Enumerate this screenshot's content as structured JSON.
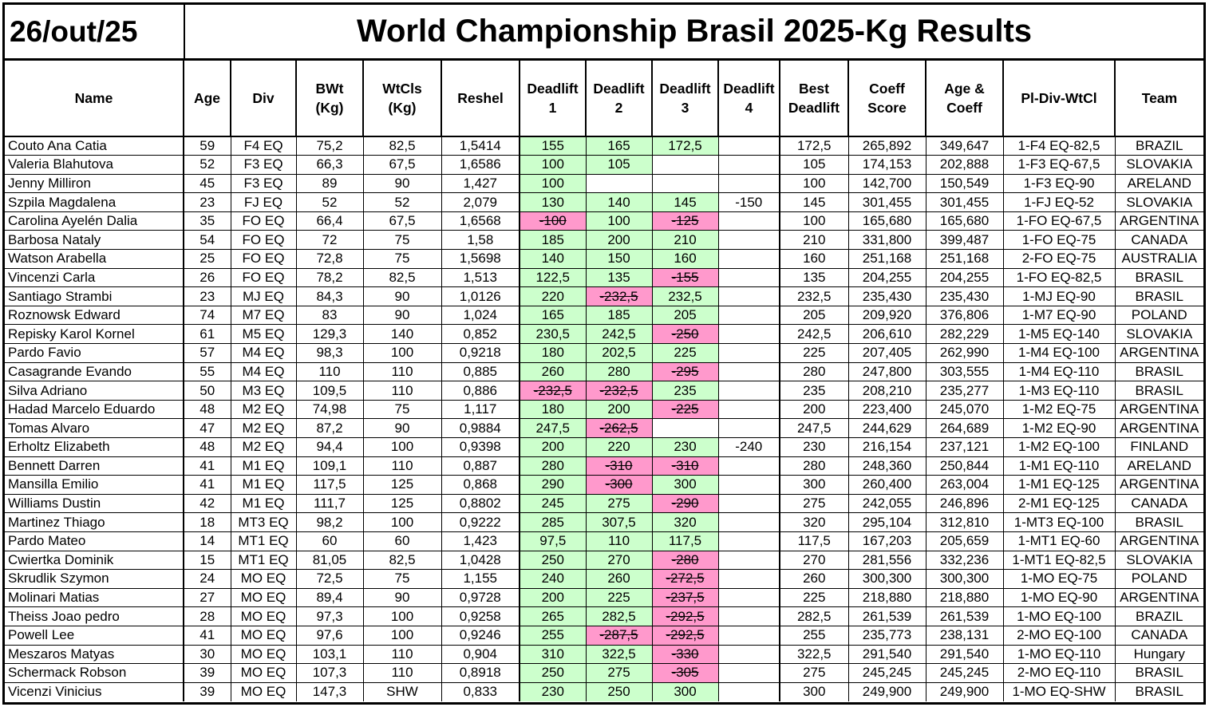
{
  "date": "26/out/25",
  "title": "World Championship Brasil 2025-Kg Results",
  "headers": [
    [
      "Name"
    ],
    [
      "Age"
    ],
    [
      "Div"
    ],
    [
      "BWt",
      "(Kg)"
    ],
    [
      "WtCls",
      "(Kg)"
    ],
    [
      "Reshel"
    ],
    [
      "Deadlift",
      "1"
    ],
    [
      "Deadlift",
      "2"
    ],
    [
      "Deadlift",
      "3"
    ],
    [
      "Deadlift",
      "4"
    ],
    [
      "Best",
      "Deadlift"
    ],
    [
      "Coeff",
      "Score"
    ],
    [
      "Age  &",
      "Coeff"
    ],
    [
      "Pl-Div-WtCl"
    ],
    [
      "Team"
    ]
  ],
  "colors": {
    "good_lift": "#ccffcc",
    "missed_lift": "#ff99cc"
  },
  "rows": [
    {
      "name": "Couto Ana Catia",
      "age": "59",
      "div": "F4 EQ",
      "bwt": "75,2",
      "wtcls": "82,5",
      "reshel": "1,5414",
      "d1": "155",
      "d1s": "good",
      "d2": "165",
      "d2s": "good",
      "d3": "172,5",
      "d3s": "good",
      "d4": "",
      "best": "172,5",
      "coeff": "265,892",
      "agecoeff": "349,647",
      "place": "1-F4 EQ-82,5",
      "team": "BRAZIL"
    },
    {
      "name": "Valeria Blahutova",
      "age": "52",
      "div": "F3 EQ",
      "bwt": "66,3",
      "wtcls": "67,5",
      "reshel": "1,6586",
      "d1": "100",
      "d1s": "good",
      "d2": "105",
      "d2s": "good",
      "d3": "",
      "d3s": "",
      "d4": "",
      "best": "105",
      "coeff": "174,153",
      "agecoeff": "202,888",
      "place": "1-F3 EQ-67,5",
      "team": "SLOVAKIA"
    },
    {
      "name": "Jenny Milliron",
      "age": "45",
      "div": "F3 EQ",
      "bwt": "89",
      "wtcls": "90",
      "reshel": "1,427",
      "d1": "100",
      "d1s": "good",
      "d2": "",
      "d2s": "",
      "d3": "",
      "d3s": "",
      "d4": "",
      "best": "100",
      "coeff": "142,700",
      "agecoeff": "150,549",
      "place": "1-F3 EQ-90",
      "team": "ARELAND"
    },
    {
      "name": "Szpila Magdalena",
      "age": "23",
      "div": "FJ EQ",
      "bwt": "52",
      "wtcls": "52",
      "reshel": "2,079",
      "d1": "130",
      "d1s": "good",
      "d2": "140",
      "d2s": "good",
      "d3": "145",
      "d3s": "good",
      "d4": "-150",
      "best": "145",
      "coeff": "301,455",
      "agecoeff": "301,455",
      "place": "1-FJ EQ-52",
      "team": "SLOVAKIA"
    },
    {
      "name": "Carolina Ayelén Dalia",
      "age": "35",
      "div": "FO EQ",
      "bwt": "66,4",
      "wtcls": "67,5",
      "reshel": "1,6568",
      "d1": "-100",
      "d1s": "bad",
      "d2": "100",
      "d2s": "good",
      "d3": "-125",
      "d3s": "bad",
      "d4": "",
      "best": "100",
      "coeff": "165,680",
      "agecoeff": "165,680",
      "place": "1-FO EQ-67,5",
      "team": "ARGENTINA"
    },
    {
      "name": "Barbosa Nataly",
      "age": "54",
      "div": "FO EQ",
      "bwt": "72",
      "wtcls": "75",
      "reshel": "1,58",
      "d1": "185",
      "d1s": "good",
      "d2": "200",
      "d2s": "good",
      "d3": "210",
      "d3s": "good",
      "d4": "",
      "best": "210",
      "coeff": "331,800",
      "agecoeff": "399,487",
      "place": "1-FO EQ-75",
      "team": "CANADA"
    },
    {
      "name": "Watson Arabella",
      "age": "25",
      "div": "FO EQ",
      "bwt": "72,8",
      "wtcls": "75",
      "reshel": "1,5698",
      "d1": "140",
      "d1s": "good",
      "d2": "150",
      "d2s": "good",
      "d3": "160",
      "d3s": "good",
      "d4": "",
      "best": "160",
      "coeff": "251,168",
      "agecoeff": "251,168",
      "place": "2-FO EQ-75",
      "team": "AUSTRALIA"
    },
    {
      "name": "Vincenzi Carla",
      "age": "26",
      "div": "FO EQ",
      "bwt": "78,2",
      "wtcls": "82,5",
      "reshel": "1,513",
      "d1": "122,5",
      "d1s": "good",
      "d2": "135",
      "d2s": "good",
      "d3": "-155",
      "d3s": "bad",
      "d4": "",
      "best": "135",
      "coeff": "204,255",
      "agecoeff": "204,255",
      "place": "1-FO EQ-82,5",
      "team": "BRASIL"
    },
    {
      "name": "Santiago Strambi",
      "age": "23",
      "div": "MJ  EQ",
      "bwt": "84,3",
      "wtcls": "90",
      "reshel": "1,0126",
      "d1": "220",
      "d1s": "good",
      "d2": "-232,5",
      "d2s": "bad",
      "d3": "232,5",
      "d3s": "good",
      "d4": "",
      "best": "232,5",
      "coeff": "235,430",
      "agecoeff": "235,430",
      "place": "1-MJ  EQ-90",
      "team": "BRASIL"
    },
    {
      "name": "Roznowsk Edward",
      "age": "74",
      "div": "M7 EQ",
      "bwt": "83",
      "wtcls": "90",
      "reshel": "1,024",
      "d1": "165",
      "d1s": "good",
      "d2": "185",
      "d2s": "good",
      "d3": "205",
      "d3s": "good",
      "d4": "",
      "best": "205",
      "coeff": "209,920",
      "agecoeff": "376,806",
      "place": "1-M7 EQ-90",
      "team": "POLAND"
    },
    {
      "name": "Repisky Karol Kornel",
      "age": "61",
      "div": "M5 EQ",
      "bwt": "129,3",
      "wtcls": "140",
      "reshel": "0,852",
      "d1": "230,5",
      "d1s": "good",
      "d2": "242,5",
      "d2s": "good",
      "d3": "-250",
      "d3s": "bad",
      "d4": "",
      "best": "242,5",
      "coeff": "206,610",
      "agecoeff": "282,229",
      "place": "1-M5 EQ-140",
      "team": "SLOVAKIA"
    },
    {
      "name": "Pardo Favio",
      "age": "57",
      "div": "M4 EQ",
      "bwt": "98,3",
      "wtcls": "100",
      "reshel": "0,9218",
      "d1": "180",
      "d1s": "good",
      "d2": "202,5",
      "d2s": "good",
      "d3": "225",
      "d3s": "good",
      "d4": "",
      "best": "225",
      "coeff": "207,405",
      "agecoeff": "262,990",
      "place": "1-M4 EQ-100",
      "team": "ARGENTINA"
    },
    {
      "name": "Casagrande Evando",
      "age": "55",
      "div": "M4 EQ",
      "bwt": "110",
      "wtcls": "110",
      "reshel": "0,885",
      "d1": "260",
      "d1s": "good",
      "d2": "280",
      "d2s": "good",
      "d3": "-295",
      "d3s": "bad",
      "d4": "",
      "best": "280",
      "coeff": "247,800",
      "agecoeff": "303,555",
      "place": "1-M4 EQ-110",
      "team": "BRASIL"
    },
    {
      "name": "Silva Adriano",
      "age": "50",
      "div": "M3 EQ",
      "bwt": "109,5",
      "wtcls": "110",
      "reshel": "0,886",
      "d1": "-232,5",
      "d1s": "bad",
      "d2": "-232,5",
      "d2s": "bad",
      "d3": "235",
      "d3s": "good",
      "d4": "",
      "best": "235",
      "coeff": "208,210",
      "agecoeff": "235,277",
      "place": "1-M3 EQ-110",
      "team": "BRASIL"
    },
    {
      "name": "Hadad Marcelo Eduardo",
      "age": "48",
      "div": "M2 EQ",
      "bwt": "74,98",
      "wtcls": "75",
      "reshel": "1,117",
      "d1": "180",
      "d1s": "good",
      "d2": "200",
      "d2s": "good",
      "d3": "-225",
      "d3s": "bad",
      "d4": "",
      "best": "200",
      "coeff": "223,400",
      "agecoeff": "245,070",
      "place": "1-M2 EQ-75",
      "team": "ARGENTINA"
    },
    {
      "name": "Tomas Alvaro",
      "age": "47",
      "div": "M2 EQ",
      "bwt": "87,2",
      "wtcls": "90",
      "reshel": "0,9884",
      "d1": "247,5",
      "d1s": "good",
      "d2": "-262,5",
      "d2s": "bad",
      "d3": "",
      "d3s": "",
      "d4": "",
      "best": "247,5",
      "coeff": "244,629",
      "agecoeff": "264,689",
      "place": "1-M2 EQ-90",
      "team": "ARGENTINA"
    },
    {
      "name": "Erholtz Elizabeth",
      "age": "48",
      "div": "M2 EQ",
      "bwt": "94,4",
      "wtcls": "100",
      "reshel": "0,9398",
      "d1": "200",
      "d1s": "good",
      "d2": "220",
      "d2s": "good",
      "d3": "230",
      "d3s": "good",
      "d4": "-240",
      "best": "230",
      "coeff": "216,154",
      "agecoeff": "237,121",
      "place": "1-M2 EQ-100",
      "team": "FINLAND"
    },
    {
      "name": "Bennett Darren",
      "age": "41",
      "div": "M1 EQ",
      "bwt": "109,1",
      "wtcls": "110",
      "reshel": "0,887",
      "d1": "280",
      "d1s": "good",
      "d2": "-310",
      "d2s": "bad",
      "d3": "-310",
      "d3s": "bad",
      "d4": "",
      "best": "280",
      "coeff": "248,360",
      "agecoeff": "250,844",
      "place": "1-M1 EQ-110",
      "team": "ARELAND"
    },
    {
      "name": "Mansilla Emilio",
      "age": "41",
      "div": "M1 EQ",
      "bwt": "117,5",
      "wtcls": "125",
      "reshel": "0,868",
      "d1": "290",
      "d1s": "good",
      "d2": "-300",
      "d2s": "bad",
      "d3": "300",
      "d3s": "good",
      "d4": "",
      "best": "300",
      "coeff": "260,400",
      "agecoeff": "263,004",
      "place": "1-M1 EQ-125",
      "team": "ARGENTINA"
    },
    {
      "name": "Williams Dustin",
      "age": "42",
      "div": "M1 EQ",
      "bwt": "111,7",
      "wtcls": "125",
      "reshel": "0,8802",
      "d1": "245",
      "d1s": "good",
      "d2": "275",
      "d2s": "good",
      "d3": "-290",
      "d3s": "bad",
      "d4": "",
      "best": "275",
      "coeff": "242,055",
      "agecoeff": "246,896",
      "place": "2-M1 EQ-125",
      "team": "CANADA"
    },
    {
      "name": "Martinez Thiago",
      "age": "18",
      "div": "MT3 EQ",
      "bwt": "98,2",
      "wtcls": "100",
      "reshel": "0,9222",
      "d1": "285",
      "d1s": "good",
      "d2": "307,5",
      "d2s": "good",
      "d3": "320",
      "d3s": "good",
      "d4": "",
      "best": "320",
      "coeff": "295,104",
      "agecoeff": "312,810",
      "place": "1-MT3 EQ-100",
      "team": "BRASIL"
    },
    {
      "name": "Pardo Mateo",
      "age": "14",
      "div": "MT1 EQ",
      "bwt": "60",
      "wtcls": "60",
      "reshel": "1,423",
      "d1": "97,5",
      "d1s": "good",
      "d2": "110",
      "d2s": "good",
      "d3": "117,5",
      "d3s": "good",
      "d4": "",
      "best": "117,5",
      "coeff": "167,203",
      "agecoeff": "205,659",
      "place": "1-MT1 EQ-60",
      "team": "ARGENTINA"
    },
    {
      "name": "Cwiertka Dominik",
      "age": "15",
      "div": "MT1 EQ",
      "bwt": "81,05",
      "wtcls": "82,5",
      "reshel": "1,0428",
      "d1": "250",
      "d1s": "good",
      "d2": "270",
      "d2s": "good",
      "d3": "-280",
      "d3s": "bad",
      "d4": "",
      "best": "270",
      "coeff": "281,556",
      "agecoeff": "332,236",
      "place": "1-MT1 EQ-82,5",
      "team": "SLOVAKIA"
    },
    {
      "name": "Skrudlik Szymon",
      "age": "24",
      "div": "MO EQ",
      "bwt": "72,5",
      "wtcls": "75",
      "reshel": "1,155",
      "d1": "240",
      "d1s": "good",
      "d2": "260",
      "d2s": "good",
      "d3": "-272,5",
      "d3s": "bad",
      "d4": "",
      "best": "260",
      "coeff": "300,300",
      "agecoeff": "300,300",
      "place": "1-MO EQ-75",
      "team": "POLAND"
    },
    {
      "name": "Molinari Matias",
      "age": "27",
      "div": "MO EQ",
      "bwt": "89,4",
      "wtcls": "90",
      "reshel": "0,9728",
      "d1": "200",
      "d1s": "good",
      "d2": "225",
      "d2s": "good",
      "d3": "-237,5",
      "d3s": "bad",
      "d4": "",
      "best": "225",
      "coeff": "218,880",
      "agecoeff": "218,880",
      "place": "1-MO EQ-90",
      "team": "ARGENTINA"
    },
    {
      "name": "Theiss Joao pedro",
      "age": "28",
      "div": "MO EQ",
      "bwt": "97,3",
      "wtcls": "100",
      "reshel": "0,9258",
      "d1": "265",
      "d1s": "good",
      "d2": "282,5",
      "d2s": "good",
      "d3": "-292,5",
      "d3s": "bad",
      "d4": "",
      "best": "282,5",
      "coeff": "261,539",
      "agecoeff": "261,539",
      "place": "1-MO EQ-100",
      "team": "BRAZIL"
    },
    {
      "name": "Powell Lee",
      "age": "41",
      "div": "MO EQ",
      "bwt": "97,6",
      "wtcls": "100",
      "reshel": "0,9246",
      "d1": "255",
      "d1s": "good",
      "d2": "-287,5",
      "d2s": "bad",
      "d3": "-292,5",
      "d3s": "bad",
      "d4": "",
      "best": "255",
      "coeff": "235,773",
      "agecoeff": "238,131",
      "place": "2-MO EQ-100",
      "team": "CANADA"
    },
    {
      "name": "Meszaros Matyas",
      "age": "30",
      "div": "MO EQ",
      "bwt": "103,1",
      "wtcls": "110",
      "reshel": "0,904",
      "d1": "310",
      "d1s": "good",
      "d2": "322,5",
      "d2s": "good",
      "d3": "-330",
      "d3s": "bad",
      "d4": "",
      "best": "322,5",
      "coeff": "291,540",
      "agecoeff": "291,540",
      "place": "1-MO EQ-110",
      "team": "Hungary"
    },
    {
      "name": "Schermack Robson",
      "age": "39",
      "div": "MO EQ",
      "bwt": "107,3",
      "wtcls": "110",
      "reshel": "0,8918",
      "d1": "250",
      "d1s": "good",
      "d2": "275",
      "d2s": "good",
      "d3": "-305",
      "d3s": "bad",
      "d4": "",
      "best": "275",
      "coeff": "245,245",
      "agecoeff": "245,245",
      "place": "2-MO EQ-110",
      "team": "BRASIL"
    },
    {
      "name": "Vicenzi Vinicius",
      "age": "39",
      "div": "MO EQ",
      "bwt": "147,3",
      "wtcls": "SHW",
      "reshel": "0,833",
      "d1": "230",
      "d1s": "good",
      "d2": "250",
      "d2s": "good",
      "d3": "300",
      "d3s": "good",
      "d4": "",
      "best": "300",
      "coeff": "249,900",
      "agecoeff": "249,900",
      "place": "1-MO EQ-SHW",
      "team": "BRASIL"
    }
  ]
}
